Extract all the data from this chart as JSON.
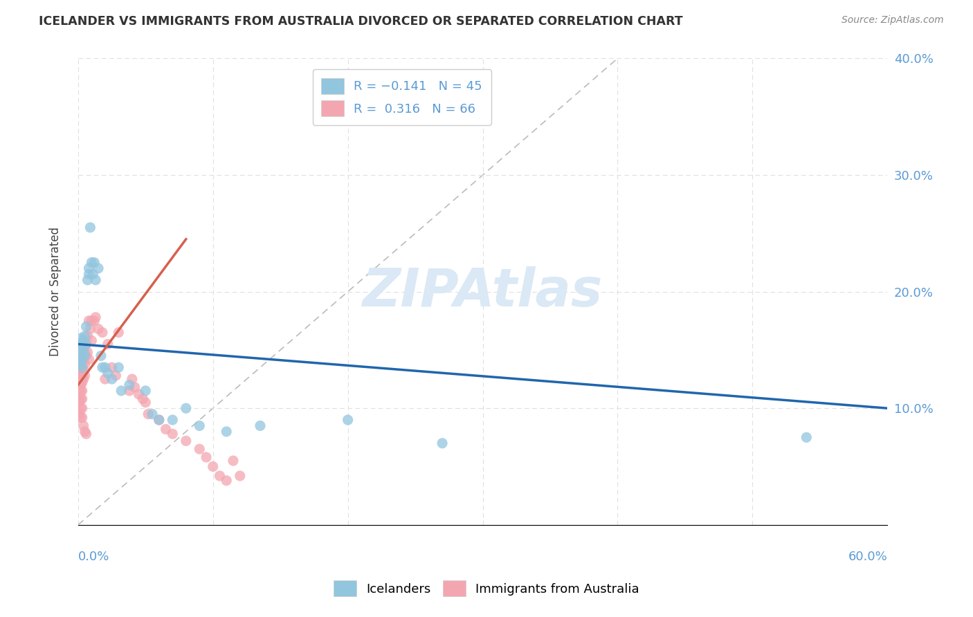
{
  "title": "ICELANDER VS IMMIGRANTS FROM AUSTRALIA DIVORCED OR SEPARATED CORRELATION CHART",
  "source": "Source: ZipAtlas.com",
  "ylabel": "Divorced or Separated",
  "icelanders_color": "#92c5de",
  "immigrants_color": "#f4a6b0",
  "icelanders_line_color": "#2166ac",
  "immigrants_line_color": "#d6604d",
  "diagonal_color": "#bbbbbb",
  "background_color": "#ffffff",
  "xlim": [
    0.0,
    0.6
  ],
  "ylim": [
    0.0,
    0.4
  ],
  "icelanders_x": [
    0.001,
    0.001,
    0.001,
    0.002,
    0.002,
    0.002,
    0.002,
    0.003,
    0.003,
    0.003,
    0.003,
    0.004,
    0.004,
    0.005,
    0.005,
    0.006,
    0.006,
    0.007,
    0.008,
    0.008,
    0.009,
    0.01,
    0.011,
    0.012,
    0.013,
    0.015,
    0.017,
    0.018,
    0.02,
    0.022,
    0.025,
    0.03,
    0.032,
    0.038,
    0.05,
    0.055,
    0.06,
    0.07,
    0.08,
    0.09,
    0.11,
    0.135,
    0.2,
    0.27,
    0.54
  ],
  "icelanders_y": [
    0.155,
    0.148,
    0.14,
    0.16,
    0.152,
    0.145,
    0.138,
    0.155,
    0.148,
    0.142,
    0.135,
    0.158,
    0.15,
    0.162,
    0.145,
    0.17,
    0.155,
    0.21,
    0.215,
    0.22,
    0.255,
    0.225,
    0.215,
    0.225,
    0.21,
    0.22,
    0.145,
    0.135,
    0.135,
    0.13,
    0.125,
    0.135,
    0.115,
    0.12,
    0.115,
    0.095,
    0.09,
    0.09,
    0.1,
    0.085,
    0.08,
    0.085,
    0.09,
    0.07,
    0.075
  ],
  "immigrants_x": [
    0.001,
    0.001,
    0.001,
    0.001,
    0.001,
    0.001,
    0.001,
    0.002,
    0.002,
    0.002,
    0.002,
    0.002,
    0.002,
    0.002,
    0.003,
    0.003,
    0.003,
    0.003,
    0.003,
    0.003,
    0.003,
    0.004,
    0.004,
    0.004,
    0.004,
    0.005,
    0.005,
    0.005,
    0.005,
    0.006,
    0.006,
    0.006,
    0.007,
    0.007,
    0.008,
    0.008,
    0.009,
    0.01,
    0.01,
    0.012,
    0.013,
    0.015,
    0.018,
    0.02,
    0.022,
    0.025,
    0.028,
    0.03,
    0.038,
    0.04,
    0.042,
    0.045,
    0.048,
    0.05,
    0.052,
    0.06,
    0.065,
    0.07,
    0.08,
    0.09,
    0.095,
    0.1,
    0.105,
    0.11,
    0.115,
    0.12
  ],
  "immigrants_y": [
    0.13,
    0.125,
    0.12,
    0.115,
    0.108,
    0.105,
    0.095,
    0.13,
    0.125,
    0.12,
    0.115,
    0.108,
    0.1,
    0.092,
    0.135,
    0.128,
    0.122,
    0.115,
    0.108,
    0.1,
    0.092,
    0.14,
    0.133,
    0.125,
    0.085,
    0.148,
    0.138,
    0.128,
    0.08,
    0.155,
    0.145,
    0.078,
    0.162,
    0.148,
    0.175,
    0.142,
    0.168,
    0.175,
    0.158,
    0.175,
    0.178,
    0.168,
    0.165,
    0.125,
    0.155,
    0.135,
    0.128,
    0.165,
    0.115,
    0.125,
    0.118,
    0.112,
    0.108,
    0.105,
    0.095,
    0.09,
    0.082,
    0.078,
    0.072,
    0.065,
    0.058,
    0.05,
    0.042,
    0.038,
    0.055,
    0.042
  ],
  "immigrants_line_x": [
    0.0,
    0.08
  ],
  "immigrants_line_y": [
    0.12,
    0.245
  ]
}
